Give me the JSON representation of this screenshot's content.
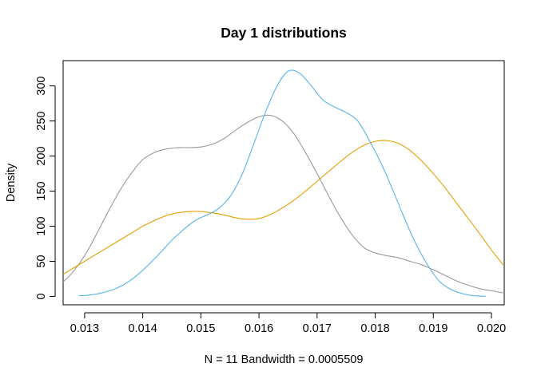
{
  "chart_data": {
    "type": "line",
    "title": "Day 1 distributions",
    "xlabel": "N = 11   Bandwidth = 0.0005509",
    "ylabel": "Density",
    "xlim": [
      0.01263,
      0.02022
    ],
    "ylim": [
      -12,
      336
    ],
    "x_ticks": [
      0.013,
      0.014,
      0.015,
      0.016,
      0.017,
      0.018,
      0.019,
      0.02
    ],
    "x_tick_labels": [
      "0.013",
      "0.014",
      "0.015",
      "0.016",
      "0.017",
      "0.018",
      "0.019",
      "0.020"
    ],
    "y_ticks": [
      0,
      50,
      100,
      150,
      200,
      250,
      300
    ],
    "y_tick_labels": [
      "0",
      "50",
      "100",
      "150",
      "200",
      "250",
      "300"
    ],
    "grid": false,
    "legend": null,
    "series": [
      {
        "color": "#999999",
        "x": [
          0.0126,
          0.0128,
          0.013,
          0.0132,
          0.0134,
          0.0136,
          0.0138,
          0.014,
          0.0142,
          0.0144,
          0.0146,
          0.0148,
          0.015,
          0.0152,
          0.0154,
          0.0156,
          0.0158,
          0.016,
          0.0162,
          0.0164,
          0.0166,
          0.0168,
          0.017,
          0.0172,
          0.0174,
          0.0176,
          0.0178,
          0.018,
          0.0182,
          0.0184,
          0.0186,
          0.0188,
          0.019,
          0.0192,
          0.0194,
          0.0196,
          0.0198,
          0.02,
          0.0202
        ],
        "values": [
          18,
          35,
          58,
          88,
          120,
          150,
          175,
          195,
          205,
          210,
          212,
          212,
          213,
          217,
          225,
          237,
          248,
          256,
          258,
          250,
          232,
          205,
          175,
          143,
          113,
          88,
          70,
          62,
          58,
          55,
          50,
          45,
          38,
          30,
          22,
          16,
          11,
          8,
          5
        ]
      },
      {
        "color": "#E69F00",
        "x": [
          0.0126,
          0.0128,
          0.013,
          0.0132,
          0.0134,
          0.0136,
          0.0138,
          0.014,
          0.0142,
          0.0144,
          0.0146,
          0.0148,
          0.015,
          0.0152,
          0.0154,
          0.0156,
          0.0158,
          0.016,
          0.0162,
          0.0164,
          0.0166,
          0.0168,
          0.017,
          0.0172,
          0.0174,
          0.0176,
          0.0178,
          0.018,
          0.0182,
          0.0184,
          0.0186,
          0.0188,
          0.019,
          0.0192,
          0.0194,
          0.0196,
          0.0198,
          0.02,
          0.0202
        ],
        "values": [
          30,
          40,
          50,
          60,
          70,
          80,
          90,
          100,
          108,
          115,
          119,
          121,
          121,
          119,
          116,
          112,
          110,
          111,
          117,
          126,
          137,
          150,
          164,
          178,
          192,
          205,
          215,
          221,
          222,
          218,
          208,
          193,
          175,
          155,
          133,
          111,
          89,
          66,
          45
        ]
      },
      {
        "color": "#56B4E9",
        "x": [
          0.0129,
          0.0131,
          0.0133,
          0.0135,
          0.0137,
          0.0139,
          0.0141,
          0.0143,
          0.0145,
          0.0147,
          0.0149,
          0.0151,
          0.0153,
          0.0155,
          0.0157,
          0.0159,
          0.0161,
          0.0163,
          0.0165,
          0.0167,
          0.0169,
          0.0171,
          0.0173,
          0.0175,
          0.0177,
          0.0179,
          0.0181,
          0.0183,
          0.0185,
          0.0187,
          0.0189,
          0.0191,
          0.0193,
          0.0195,
          0.0197,
          0.0199
        ],
        "values": [
          1,
          2,
          5,
          10,
          18,
          30,
          45,
          62,
          80,
          95,
          108,
          116,
          125,
          142,
          172,
          215,
          260,
          298,
          321,
          318,
          300,
          280,
          270,
          262,
          250,
          222,
          190,
          152,
          112,
          75,
          45,
          22,
          10,
          4,
          1,
          0
        ]
      }
    ]
  }
}
